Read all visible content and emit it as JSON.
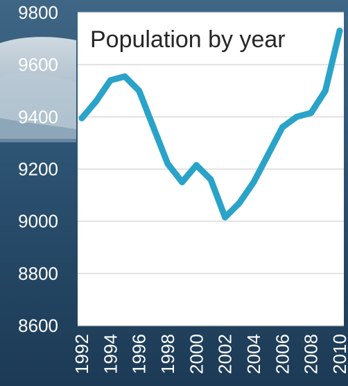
{
  "chart_data": {
    "type": "line",
    "title": "Population by year",
    "xlabel": "",
    "ylabel": "",
    "x": [
      1992,
      1993,
      1994,
      1995,
      1996,
      1997,
      1998,
      1999,
      2000,
      2001,
      2002,
      2003,
      2004,
      2005,
      2006,
      2007,
      2008,
      2009,
      2010
    ],
    "x_tick_labels": [
      "1992",
      "1994",
      "1996",
      "1998",
      "2000",
      "2002",
      "2004",
      "2006",
      "2008",
      "2010"
    ],
    "y_tick_labels": [
      "9800",
      "9600",
      "9400",
      "9200",
      "9000",
      "8800",
      "8600"
    ],
    "ylim": [
      8600,
      9800
    ],
    "grid": true,
    "legend": "none",
    "series": [
      {
        "values": [
          9395,
          9460,
          9540,
          9555,
          9500,
          9360,
          9220,
          9150,
          9215,
          9160,
          9015,
          9070,
          9150,
          9255,
          9360,
          9400,
          9415,
          9500,
          9730
        ],
        "color": "#2aa3c9"
      }
    ]
  },
  "colors": {
    "plot_background": "#ffffff",
    "gridline": "#d9d9d9",
    "line": "#2aa3c9",
    "tick_text": "#ffffff",
    "title_text": "#262626"
  }
}
